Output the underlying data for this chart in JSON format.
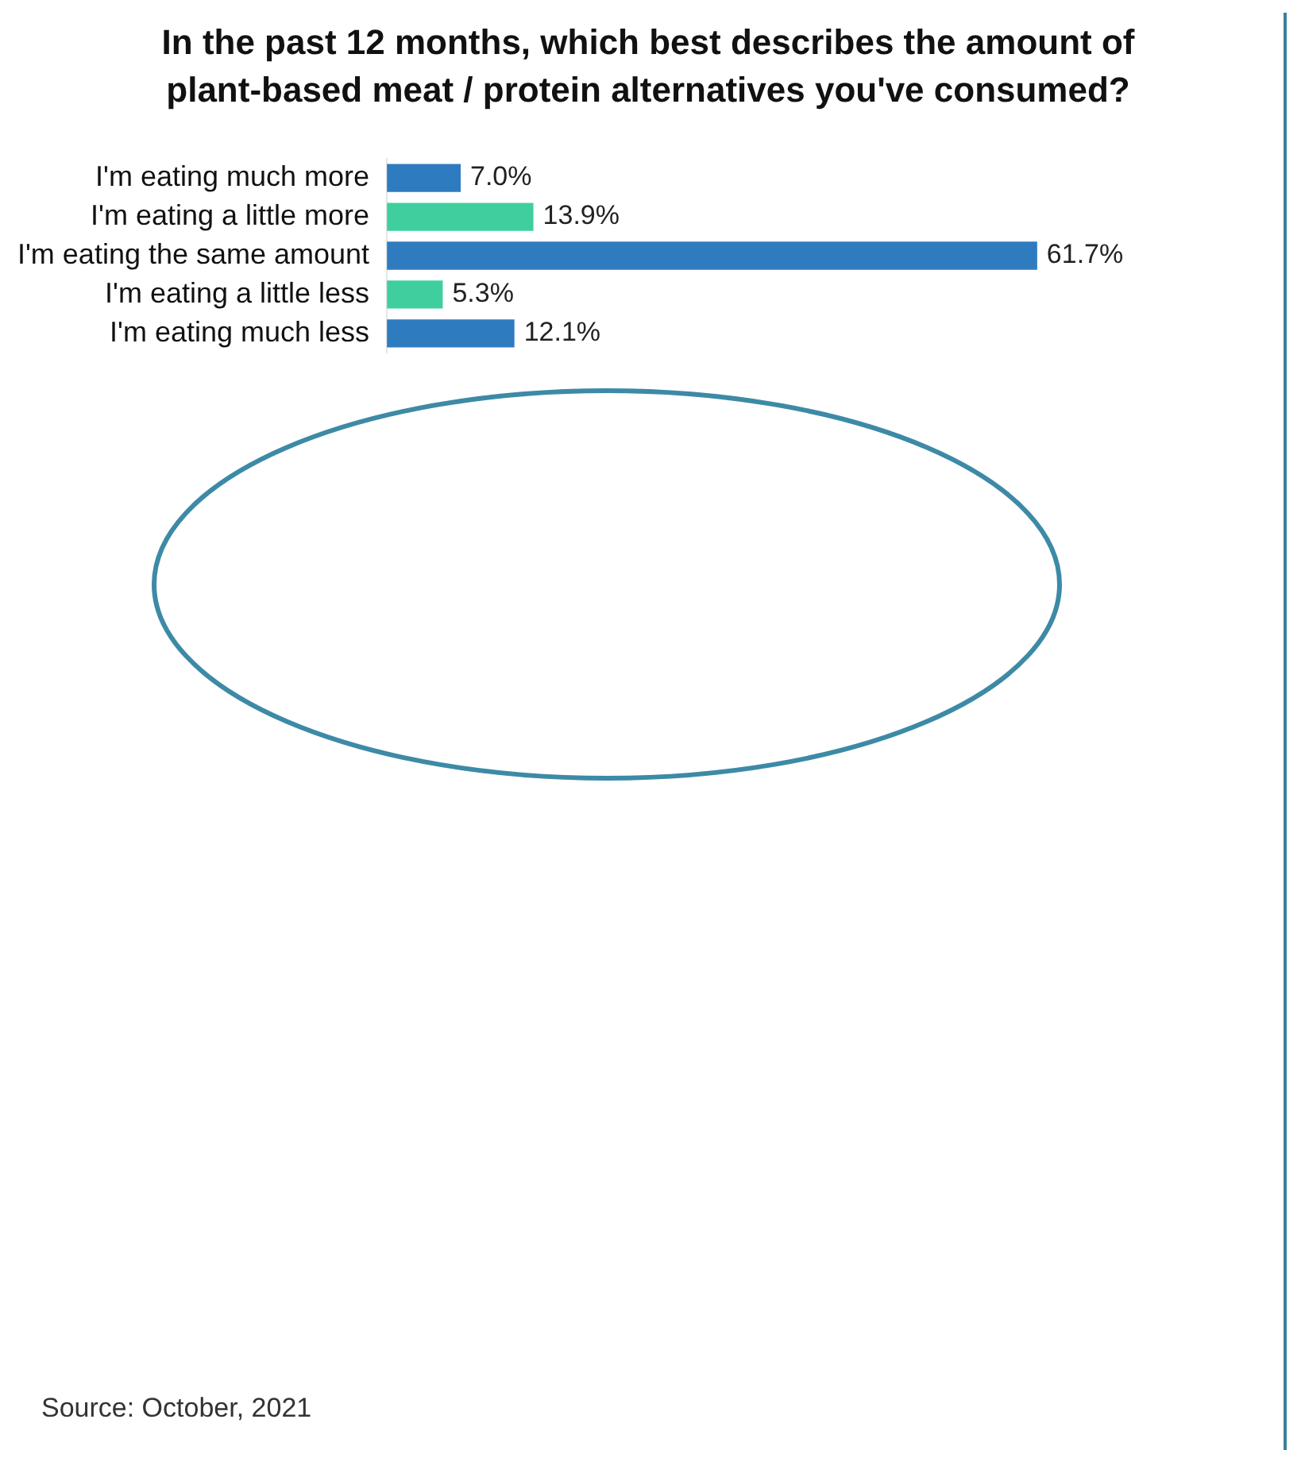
{
  "chart_data": {
    "type": "bar",
    "orientation": "horizontal",
    "title": "In the past 12 months, which best describes the amount of plant-based meat / protein alternatives you've consumed?",
    "categories": [
      "I'm eating much more",
      "I'm eating a little more",
      "I'm eating the same amount",
      "I'm eating a little less",
      "I'm eating much less"
    ],
    "values": [
      7.0,
      13.9,
      61.7,
      5.3,
      12.1
    ],
    "value_labels": [
      "7.0%",
      "13.9%",
      "61.7%",
      "5.3%",
      "12.1%"
    ],
    "colors": [
      "#2f7bbf",
      "#3fcf9f",
      "#2f7bbf",
      "#3fcf9f",
      "#2f7bbf"
    ],
    "grid": false,
    "legend": false,
    "annotations": [
      "Source: October, 2021"
    ]
  }
}
